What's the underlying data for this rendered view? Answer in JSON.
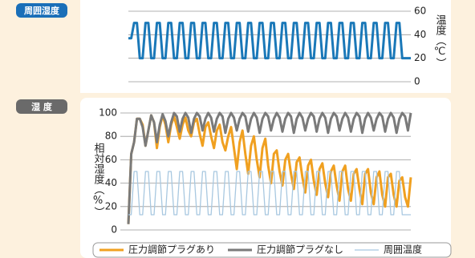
{
  "chart_data": [
    {
      "type": "line",
      "panel_label": "周囲湿度",
      "y_label": "温度（℃）",
      "ylim": [
        0,
        60
      ],
      "yticks": [
        0,
        20,
        40,
        60
      ],
      "y_side": "right",
      "grid": true,
      "series": [
        {
          "color": "#1a78b8",
          "values": [
            37,
            37,
            50,
            50,
            20,
            20,
            50,
            50,
            20,
            20,
            50,
            50,
            20,
            20,
            50,
            50,
            20,
            20,
            50,
            50,
            20,
            20,
            50,
            50,
            20,
            20,
            50,
            50,
            20,
            20,
            50,
            50,
            20,
            20,
            50,
            50,
            20,
            20,
            50,
            50,
            20,
            20,
            50,
            50,
            20,
            20,
            50,
            50,
            20,
            20,
            50,
            50,
            20,
            20,
            50,
            50,
            20,
            20,
            50,
            50,
            20,
            20,
            50,
            50,
            20,
            20,
            50,
            50,
            20,
            20,
            50,
            50,
            20,
            20,
            50,
            50,
            20,
            20,
            50,
            50,
            20,
            20,
            50,
            50,
            20,
            20,
            50,
            50,
            20,
            20,
            50,
            50,
            20,
            20,
            50,
            50,
            20,
            20,
            20,
            20
          ]
        }
      ]
    },
    {
      "type": "line",
      "panel_label": "湿 度",
      "y_label": "相対湿度（%）",
      "ylim": [
        0,
        100
      ],
      "yticks": [
        0,
        20,
        40,
        60,
        80,
        100
      ],
      "y_side": "left",
      "grid": true,
      "legend": "bottom",
      "series": [
        {
          "name": "圧力調節プラグあり",
          "color": "#f0a020",
          "width": 3,
          "values": [
            5,
            65,
            75,
            95,
            95,
            90,
            72,
            85,
            98,
            92,
            70,
            88,
            98,
            90,
            75,
            90,
            97,
            88,
            78,
            90,
            96,
            85,
            80,
            92,
            95,
            82,
            72,
            88,
            92,
            80,
            70,
            85,
            90,
            75,
            68,
            80,
            88,
            70,
            52,
            75,
            85,
            65,
            48,
            72,
            80,
            60,
            45,
            70,
            78,
            55,
            40,
            65,
            68,
            50,
            38,
            60,
            65,
            48,
            35,
            58,
            62,
            45,
            32,
            55,
            60,
            42,
            30,
            52,
            57,
            40,
            28,
            50,
            55,
            38,
            25,
            50,
            55,
            35,
            25,
            48,
            52,
            35,
            22,
            48,
            52,
            32,
            22,
            45,
            50,
            30,
            20,
            45,
            48,
            30,
            20,
            42,
            45,
            28,
            20,
            45
          ]
        },
        {
          "name": "圧力調節プラグなし",
          "color": "#7a7a7a",
          "width": 3,
          "values": [
            5,
            65,
            75,
            95,
            95,
            88,
            72,
            85,
            98,
            92,
            75,
            90,
            99,
            93,
            80,
            92,
            100,
            97,
            84,
            95,
            100,
            96,
            83,
            95,
            100,
            97,
            85,
            95,
            100,
            96,
            84,
            95,
            100,
            97,
            83,
            95,
            100,
            96,
            85,
            95,
            100,
            97,
            84,
            95,
            100,
            96,
            83,
            95,
            100,
            97,
            85,
            95,
            100,
            96,
            84,
            95,
            100,
            97,
            83,
            95,
            100,
            96,
            85,
            95,
            100,
            97,
            84,
            95,
            100,
            96,
            83,
            95,
            100,
            97,
            85,
            95,
            100,
            96,
            84,
            95,
            100,
            97,
            83,
            95,
            100,
            96,
            85,
            95,
            100,
            97,
            84,
            95,
            100,
            96,
            83,
            95,
            100,
            97,
            85,
            100
          ]
        },
        {
          "name": "周囲温度",
          "color": "#a8c8e0",
          "width": 1.3,
          "values": [
            13,
            13,
            50,
            50,
            13,
            13,
            50,
            50,
            13,
            13,
            50,
            50,
            13,
            13,
            50,
            50,
            13,
            13,
            50,
            50,
            13,
            13,
            50,
            50,
            13,
            13,
            50,
            50,
            13,
            13,
            50,
            50,
            13,
            13,
            50,
            50,
            13,
            13,
            50,
            50,
            13,
            13,
            50,
            50,
            13,
            13,
            50,
            50,
            13,
            13,
            50,
            50,
            13,
            13,
            50,
            50,
            13,
            13,
            50,
            50,
            13,
            13,
            50,
            50,
            13,
            13,
            50,
            50,
            13,
            13,
            50,
            50,
            13,
            13,
            50,
            50,
            13,
            13,
            50,
            50,
            13,
            13,
            50,
            50,
            13,
            13,
            50,
            50,
            13,
            13,
            50,
            50,
            13,
            13,
            50,
            50,
            13,
            13,
            13,
            13
          ]
        }
      ]
    }
  ]
}
